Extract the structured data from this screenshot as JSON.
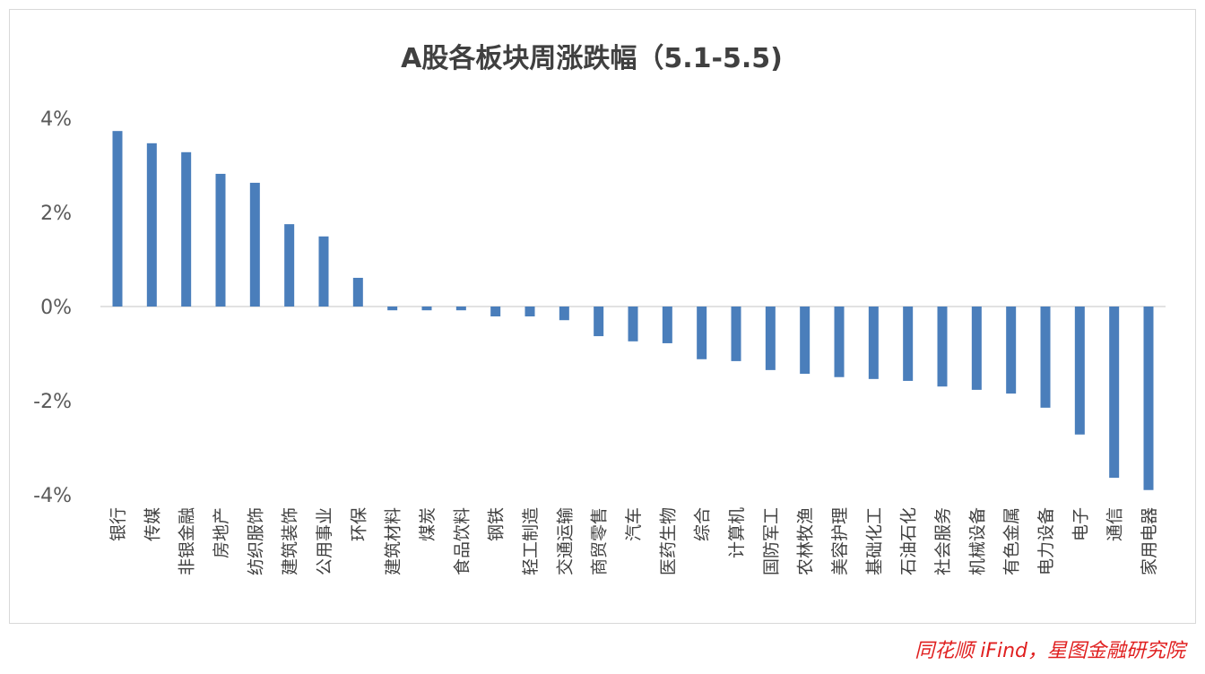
{
  "chart_data": {
    "type": "bar",
    "title": "A股各板块周涨跌幅（5.1-5.5)",
    "xlabel": "",
    "ylabel": "",
    "ylim": [
      -4,
      4
    ],
    "yticks": [
      4,
      2,
      0,
      -2,
      -4
    ],
    "ytick_labels": [
      "4%",
      "2%",
      "0%",
      "-2%",
      "-4%"
    ],
    "grid": false,
    "bar_color": "#4a7ebb",
    "categories": [
      "银行",
      "传媒",
      "非银金融",
      "房地产",
      "纺织服饰",
      "建筑装饰",
      "公用事业",
      "环保",
      "建筑材料",
      "煤炭",
      "食品饮料",
      "钢铁",
      "轻工制造",
      "交通运输",
      "商贸零售",
      "汽车",
      "医药生物",
      "综合",
      "计算机",
      "国防军工",
      "农林牧渔",
      "美容护理",
      "基础化工",
      "石油石化",
      "社会服务",
      "机械设备",
      "有色金属",
      "电力设备",
      "电子",
      "通信",
      "家用电器"
    ],
    "values": [
      3.73,
      3.47,
      3.28,
      2.82,
      2.63,
      1.75,
      1.49,
      0.61,
      -0.08,
      -0.08,
      -0.08,
      -0.21,
      -0.21,
      -0.29,
      -0.63,
      -0.74,
      -0.78,
      -1.12,
      -1.16,
      -1.35,
      -1.43,
      -1.5,
      -1.54,
      -1.58,
      -1.7,
      -1.77,
      -1.85,
      -2.15,
      -2.72,
      -3.64,
      -3.9
    ]
  },
  "source": "同花顺 iFind，星图金融研究院"
}
